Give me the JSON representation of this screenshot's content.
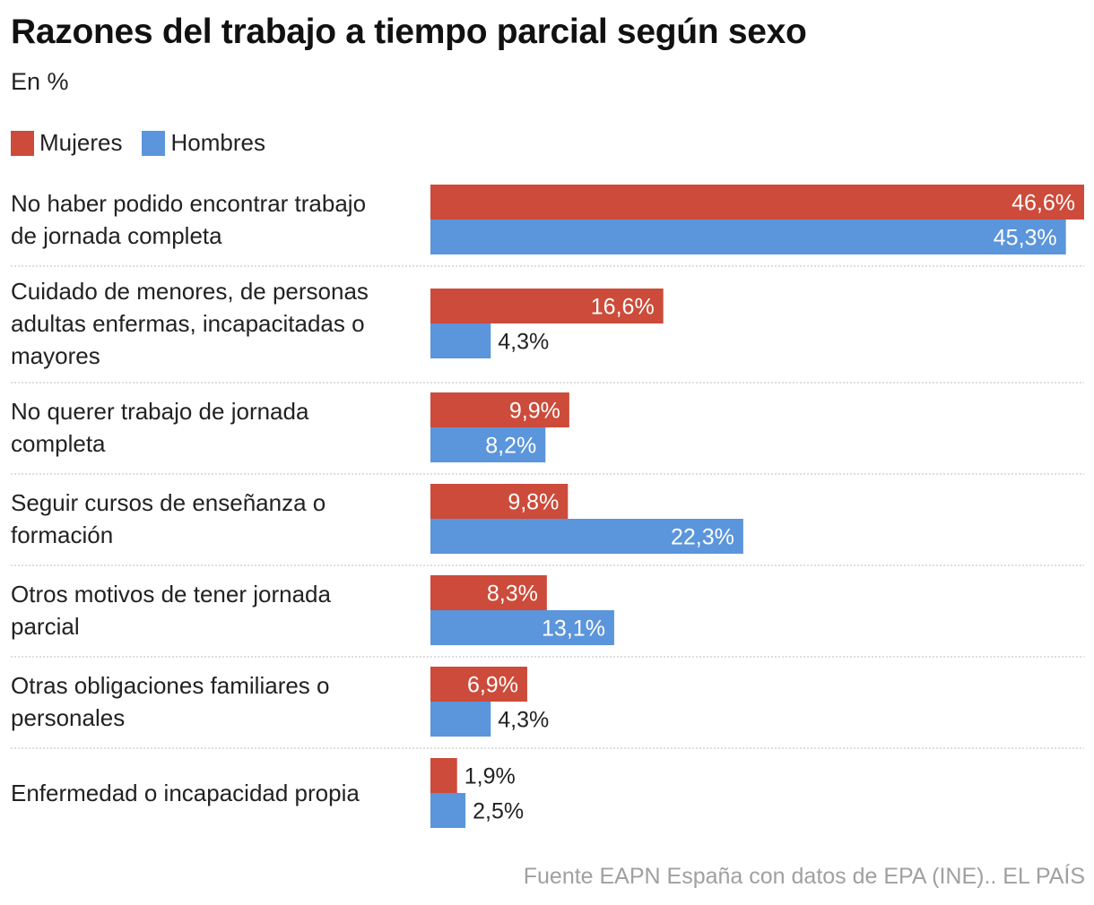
{
  "title": "Razones del trabajo a tiempo parcial según sexo",
  "subtitle": "En %",
  "source": "Fuente EAPN España con datos de EPA (INE).. EL PAÍS",
  "colors": {
    "mujeres": "#cc4b3a",
    "hombres": "#5b95db",
    "divider": "#bdbdbd",
    "label_inside": "#ffffff",
    "label_outside": "#222222"
  },
  "chart_data": {
    "type": "bar",
    "orientation": "horizontal",
    "title": "Razones del trabajo a tiempo parcial según sexo",
    "subtitle": "En %",
    "legend": "top-left",
    "grid": false,
    "xlim": [
      0,
      46.6
    ],
    "categories": [
      [
        "No haber podido encontrar trabajo",
        "de jornada completa"
      ],
      [
        "Cuidado de menores, de personas",
        "adultas enfermas, incapacitadas o",
        "mayores"
      ],
      [
        "No querer trabajo de jornada",
        "completa"
      ],
      [
        "Seguir cursos de enseñanza o",
        "formación"
      ],
      [
        "Otros motivos de tener jornada",
        "parcial"
      ],
      [
        "Otras obligaciones familiares o",
        "personales"
      ],
      [
        "Enfermedad o incapacidad propia"
      ]
    ],
    "series": [
      {
        "name": "Mujeres",
        "color": "#cc4b3a",
        "values": [
          46.6,
          16.6,
          9.9,
          9.8,
          8.3,
          6.9,
          1.9
        ],
        "labels": [
          "46,6%",
          "16,6%",
          "9,9%",
          "9,8%",
          "8,3%",
          "6,9%",
          "1,9%"
        ]
      },
      {
        "name": "Hombres",
        "color": "#5b95db",
        "values": [
          45.3,
          4.3,
          8.2,
          22.3,
          13.1,
          4.3,
          2.5
        ],
        "labels": [
          "45,3%",
          "4,3%",
          "8,2%",
          "22,3%",
          "13,1%",
          "4,3%",
          "2,5%"
        ]
      }
    ]
  }
}
